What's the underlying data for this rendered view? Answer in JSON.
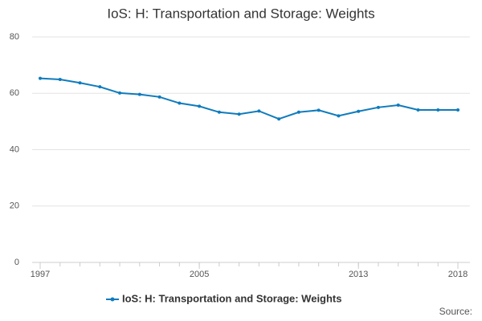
{
  "chart_data": {
    "type": "line",
    "title": "IoS: H: Transportation and Storage: Weights",
    "x": [
      1997,
      1998,
      1999,
      2000,
      2001,
      2002,
      2003,
      2004,
      2005,
      2006,
      2007,
      2008,
      2009,
      2010,
      2011,
      2012,
      2013,
      2014,
      2015,
      2016,
      2017,
      2018
    ],
    "series": [
      {
        "name": "IoS: H: Transportation and Storage: Weights",
        "color": "#0f7bbd",
        "values": [
          65.3,
          64.9,
          63.7,
          62.3,
          60.1,
          59.6,
          58.7,
          56.5,
          55.4,
          53.3,
          52.6,
          53.7,
          50.9,
          53.3,
          54.0,
          52.0,
          53.6,
          55.0,
          55.8,
          54.1,
          54.1,
          54.1
        ]
      }
    ],
    "xlim": [
      1997,
      2018
    ],
    "xticks": [
      1997,
      2005,
      2013,
      2018
    ],
    "ylim": [
      0,
      80
    ],
    "yticks": [
      0,
      20,
      40,
      60,
      80
    ],
    "grid": true,
    "source": "Source:"
  }
}
